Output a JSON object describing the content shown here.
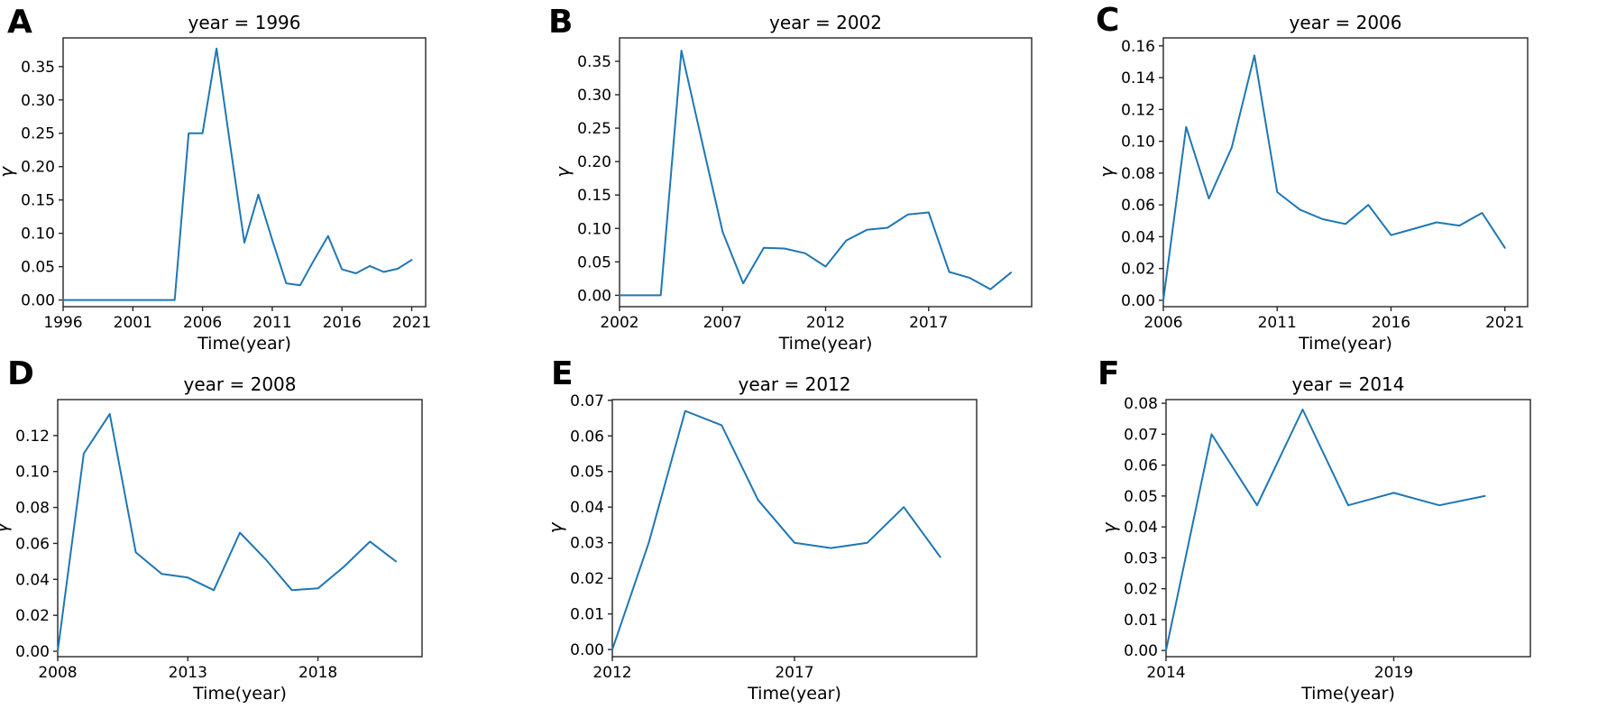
{
  "figure": {
    "background": "#ffffff",
    "line_color": "#1f77b4",
    "axis_color": "#262626",
    "text_color": "#000000"
  },
  "chart_data": [
    {
      "panel": "A",
      "type": "line",
      "title": "year = 1996",
      "xlabel": "Time(year)",
      "ylabel": "γ",
      "x": [
        1996,
        1997,
        1998,
        1999,
        2000,
        2001,
        2002,
        2003,
        2004,
        2005,
        2006,
        2007,
        2008,
        2009,
        2010,
        2011,
        2012,
        2013,
        2014,
        2015,
        2016,
        2017,
        2018,
        2019,
        2020,
        2021
      ],
      "y": [
        0,
        0,
        0,
        0,
        0,
        0,
        0,
        0,
        0,
        0.25,
        0.25,
        0.377,
        0.23,
        0.086,
        0.158,
        0.09,
        0.025,
        0.022,
        0.06,
        0.096,
        0.046,
        0.04,
        0.051,
        0.042,
        0.047,
        0.06
      ],
      "xticks": [
        1996,
        2001,
        2006,
        2011,
        2016,
        2021
      ],
      "yticks": [
        0.0,
        0.05,
        0.1,
        0.15,
        0.2,
        0.25,
        0.3,
        0.35
      ],
      "xlim": [
        1996,
        2022
      ],
      "ylim": [
        -0.01,
        0.393
      ],
      "grid": false,
      "legend": null
    },
    {
      "panel": "B",
      "type": "line",
      "title": "year = 2002",
      "xlabel": "Time(year)",
      "ylabel": "γ",
      "x": [
        2002,
        2003,
        2004,
        2005,
        2006,
        2007,
        2008,
        2009,
        2010,
        2011,
        2012,
        2013,
        2014,
        2015,
        2016,
        2017,
        2018,
        2019,
        2020,
        2021
      ],
      "y": [
        0,
        0,
        0,
        0.366,
        0.23,
        0.095,
        0.018,
        0.071,
        0.07,
        0.063,
        0.043,
        0.082,
        0.098,
        0.101,
        0.121,
        0.124,
        0.035,
        0.026,
        0.009,
        0.034
      ],
      "xticks": [
        2002,
        2007,
        2012,
        2017
      ],
      "yticks": [
        0.0,
        0.05,
        0.1,
        0.15,
        0.2,
        0.25,
        0.3,
        0.35
      ],
      "xlim": [
        2002,
        2022
      ],
      "ylim": [
        -0.017,
        0.385
      ],
      "grid": false,
      "legend": null
    },
    {
      "panel": "C",
      "type": "line",
      "title": "year = 2006",
      "xlabel": "Time(year)",
      "ylabel": "γ",
      "x": [
        2006,
        2007,
        2008,
        2009,
        2010,
        2011,
        2012,
        2013,
        2014,
        2015,
        2016,
        2017,
        2018,
        2019,
        2020,
        2021
      ],
      "y": [
        0,
        0.109,
        0.064,
        0.096,
        0.154,
        0.068,
        0.057,
        0.051,
        0.048,
        0.06,
        0.041,
        0.045,
        0.049,
        0.047,
        0.055,
        0.033
      ],
      "xticks": [
        2006,
        2011,
        2016,
        2021
      ],
      "yticks": [
        0.0,
        0.02,
        0.04,
        0.06,
        0.08,
        0.1,
        0.12,
        0.14,
        0.16
      ],
      "xlim": [
        2006,
        2022
      ],
      "ylim": [
        -0.004,
        0.165
      ],
      "grid": false,
      "legend": null
    },
    {
      "panel": "D",
      "type": "line",
      "title": "year = 2008",
      "xlabel": "Time(year)",
      "ylabel": "γ",
      "x": [
        2008,
        2009,
        2010,
        2011,
        2012,
        2013,
        2014,
        2015,
        2016,
        2017,
        2018,
        2019,
        2020,
        2021
      ],
      "y": [
        0,
        0.11,
        0.132,
        0.055,
        0.043,
        0.041,
        0.034,
        0.066,
        0.051,
        0.034,
        0.035,
        0.047,
        0.061,
        0.05
      ],
      "xticks": [
        2008,
        2013,
        2018
      ],
      "yticks": [
        0.0,
        0.02,
        0.04,
        0.06,
        0.08,
        0.1,
        0.12
      ],
      "xlim": [
        2008,
        2022
      ],
      "ylim": [
        -0.003,
        0.14
      ],
      "grid": false,
      "legend": null
    },
    {
      "panel": "E",
      "type": "line",
      "title": "year = 2012",
      "xlabel": "Time(year)",
      "ylabel": "γ",
      "x": [
        2012,
        2013,
        2014,
        2015,
        2016,
        2017,
        2018,
        2019,
        2020,
        2021
      ],
      "y": [
        0,
        0.03,
        0.067,
        0.063,
        0.042,
        0.03,
        0.0285,
        0.03,
        0.04,
        0.026
      ],
      "xticks": [
        2012,
        2017
      ],
      "yticks": [
        0.0,
        0.01,
        0.02,
        0.03,
        0.04,
        0.05,
        0.06,
        0.07
      ],
      "xlim": [
        2012,
        2022
      ],
      "ylim": [
        -0.002,
        0.0702
      ],
      "grid": false,
      "legend": null
    },
    {
      "panel": "F",
      "type": "line",
      "title": "year = 2014",
      "xlabel": "Time(year)",
      "ylabel": "γ",
      "x": [
        2014,
        2015,
        2016,
        2017,
        2018,
        2019,
        2020,
        2021
      ],
      "y": [
        0,
        0.07,
        0.047,
        0.078,
        0.047,
        0.051,
        0.047,
        0.05
      ],
      "xticks": [
        2014,
        2019
      ],
      "yticks": [
        0.0,
        0.01,
        0.02,
        0.03,
        0.04,
        0.05,
        0.06,
        0.07,
        0.08
      ],
      "xlim": [
        2014,
        2022
      ],
      "ylim": [
        -0.002,
        0.0812
      ],
      "grid": false,
      "legend": null
    }
  ]
}
